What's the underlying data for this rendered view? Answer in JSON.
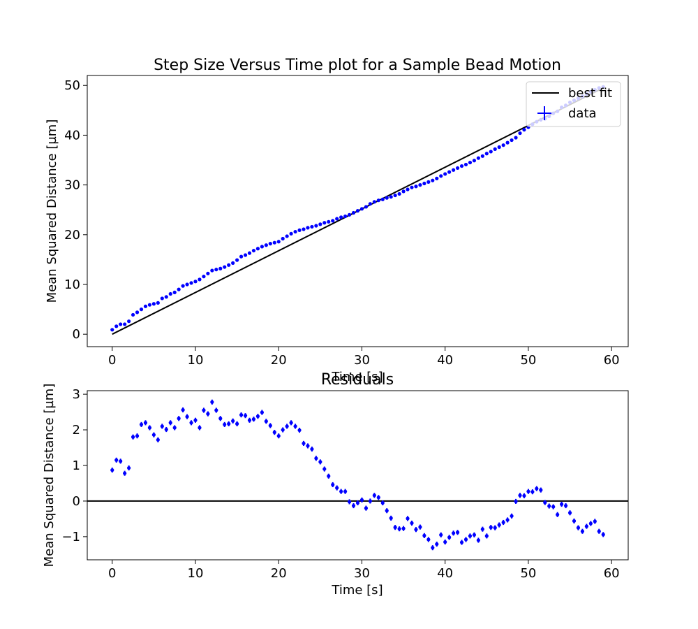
{
  "chart_data": [
    {
      "type": "scatter",
      "title": "Step Size Versus Time plot for a Sample Bead Motion",
      "xlabel": "Time [s]",
      "ylabel": "Mean Squared Distance [µm]",
      "xlim": [
        -3,
        62
      ],
      "ylim": [
        -2.5,
        52
      ],
      "xticks": [
        0,
        10,
        20,
        30,
        40,
        50,
        60
      ],
      "yticks": [
        0,
        10,
        20,
        30,
        40,
        50
      ],
      "grid": false,
      "legend_position": "top-right",
      "legend": [
        {
          "label": "best fit",
          "kind": "line",
          "color": "#000000"
        },
        {
          "label": "data",
          "kind": "errorbar-point",
          "color": "#0000ff"
        }
      ],
      "fit_line": {
        "x": [
          0,
          59
        ],
        "y": [
          0,
          49.5
        ],
        "color": "#000000"
      },
      "series": [
        {
          "color": "#0000ff",
          "x": [
            0.0,
            0.5,
            1.0,
            1.5,
            2.0,
            2.5,
            3.0,
            3.5,
            4.0,
            4.5,
            5.0,
            5.5,
            6.0,
            6.5,
            7.0,
            7.5,
            8.0,
            8.5,
            9.0,
            9.5,
            10.0,
            10.5,
            11.0,
            11.5,
            12.0,
            12.5,
            13.0,
            13.5,
            14.0,
            14.5,
            15.0,
            15.5,
            16.0,
            16.5,
            17.0,
            17.5,
            18.0,
            18.5,
            19.0,
            19.5,
            20.0,
            20.5,
            21.0,
            21.5,
            22.0,
            22.5,
            23.0,
            23.5,
            24.0,
            24.5,
            25.0,
            25.5,
            26.0,
            26.5,
            27.0,
            27.5,
            28.0,
            28.5,
            29.0,
            29.5,
            30.0,
            30.5,
            31.0,
            31.5,
            32.0,
            32.5,
            33.0,
            33.5,
            34.0,
            34.5,
            35.0,
            35.5,
            36.0,
            36.5,
            37.0,
            37.5,
            38.0,
            38.5,
            39.0,
            39.5,
            40.0,
            40.5,
            41.0,
            41.5,
            42.0,
            42.5,
            43.0,
            43.5,
            44.0,
            44.5,
            45.0,
            45.5,
            46.0,
            46.5,
            47.0,
            47.5,
            48.0,
            48.5,
            49.0,
            49.5,
            50.0,
            50.5,
            51.0,
            51.5,
            52.0,
            52.5,
            53.0,
            53.5,
            54.0,
            54.5,
            55.0,
            55.5,
            56.0,
            56.5,
            57.0,
            57.5,
            58.0,
            58.5,
            59.0
          ],
          "y": [
            0.9,
            1.6,
            2.0,
            2.0,
            2.6,
            3.9,
            4.4,
            5.0,
            5.6,
            5.9,
            6.1,
            6.3,
            7.2,
            7.5,
            8.1,
            8.4,
            9.0,
            9.7,
            10.0,
            10.3,
            10.6,
            11.0,
            11.6,
            12.2,
            12.8,
            13.0,
            13.2,
            13.5,
            13.9,
            14.3,
            14.9,
            15.6,
            15.9,
            16.3,
            16.8,
            17.2,
            17.6,
            17.9,
            18.2,
            18.4,
            18.6,
            19.2,
            19.7,
            20.2,
            20.6,
            20.9,
            21.1,
            21.4,
            21.6,
            21.8,
            22.1,
            22.4,
            22.6,
            22.8,
            23.2,
            23.5,
            23.7,
            24.0,
            24.4,
            24.8,
            25.2,
            25.6,
            26.2,
            26.6,
            26.9,
            27.1,
            27.4,
            27.6,
            27.9,
            28.2,
            28.7,
            29.1,
            29.5,
            29.7,
            30.0,
            30.3,
            30.6,
            30.9,
            31.3,
            31.8,
            32.2,
            32.6,
            33.0,
            33.4,
            33.8,
            34.1,
            34.5,
            34.9,
            35.4,
            35.8,
            36.3,
            36.7,
            37.2,
            37.6,
            38.0,
            38.5,
            39.0,
            39.5,
            40.4,
            41.1,
            41.6,
            42.2,
            42.7,
            43.1,
            43.3,
            43.8,
            44.4,
            44.8,
            45.6,
            46.0,
            46.6,
            47.0,
            47.4,
            47.8,
            48.3,
            48.7,
            49.1,
            49.5,
            49.7
          ]
        }
      ]
    },
    {
      "type": "scatter",
      "title": "Residuals",
      "xlabel": "Time [s]",
      "ylabel": "Mean Squared Distance [µm]",
      "xlim": [
        -3,
        62
      ],
      "ylim": [
        -1.65,
        3.1
      ],
      "xticks": [
        0,
        10,
        20,
        30,
        40,
        50,
        60
      ],
      "yticks": [
        -1,
        0,
        1,
        2,
        3
      ],
      "grid": false,
      "zero_line": {
        "y": 0,
        "color": "#000000"
      },
      "series": [
        {
          "color": "#0000ff",
          "error": 0.07,
          "x": [
            0.0,
            0.5,
            1.0,
            1.5,
            2.0,
            2.5,
            3.0,
            3.5,
            4.0,
            4.5,
            5.0,
            5.5,
            6.0,
            6.5,
            7.0,
            7.5,
            8.0,
            8.5,
            9.0,
            9.5,
            10.0,
            10.5,
            11.0,
            11.5,
            12.0,
            12.5,
            13.0,
            13.5,
            14.0,
            14.5,
            15.0,
            15.5,
            16.0,
            16.5,
            17.0,
            17.5,
            18.0,
            18.5,
            19.0,
            19.5,
            20.0,
            20.5,
            21.0,
            21.5,
            22.0,
            22.5,
            23.0,
            23.5,
            24.0,
            24.5,
            25.0,
            25.5,
            26.0,
            26.5,
            27.0,
            27.5,
            28.0,
            28.5,
            29.0,
            29.5,
            30.0,
            30.5,
            31.0,
            31.5,
            32.0,
            32.5,
            33.0,
            33.5,
            34.0,
            34.5,
            35.0,
            35.5,
            36.0,
            36.5,
            37.0,
            37.5,
            38.0,
            38.5,
            39.0,
            39.5,
            40.0,
            40.5,
            41.0,
            41.5,
            42.0,
            42.5,
            43.0,
            43.5,
            44.0,
            44.5,
            45.0,
            45.5,
            46.0,
            46.5,
            47.0,
            47.5,
            48.0,
            48.5,
            49.0,
            49.5,
            50.0,
            50.5,
            51.0,
            51.5,
            52.0,
            52.5,
            53.0,
            53.5,
            54.0,
            54.5,
            55.0,
            55.5,
            56.0,
            56.5,
            57.0,
            57.5,
            58.0,
            58.5,
            59.0
          ],
          "y": [
            0.87,
            1.15,
            1.12,
            0.78,
            0.93,
            1.8,
            1.83,
            2.15,
            2.2,
            2.06,
            1.86,
            1.72,
            2.1,
            2.01,
            2.2,
            2.06,
            2.32,
            2.56,
            2.37,
            2.2,
            2.27,
            2.06,
            2.55,
            2.45,
            2.78,
            2.55,
            2.32,
            2.15,
            2.17,
            2.25,
            2.17,
            2.42,
            2.4,
            2.27,
            2.3,
            2.38,
            2.49,
            2.24,
            2.12,
            1.93,
            1.83,
            2.0,
            2.1,
            2.2,
            2.1,
            1.99,
            1.62,
            1.55,
            1.46,
            1.2,
            1.1,
            0.9,
            0.7,
            0.46,
            0.37,
            0.27,
            0.27,
            -0.02,
            -0.13,
            -0.05,
            0.03,
            -0.2,
            0.0,
            0.16,
            0.1,
            -0.05,
            -0.27,
            -0.48,
            -0.74,
            -0.78,
            -0.77,
            -0.49,
            -0.62,
            -0.8,
            -0.73,
            -0.97,
            -1.08,
            -1.31,
            -1.21,
            -0.95,
            -1.15,
            -1.02,
            -0.9,
            -0.88,
            -1.16,
            -1.08,
            -0.98,
            -0.95,
            -1.1,
            -0.79,
            -0.98,
            -0.74,
            -0.75,
            -0.67,
            -0.6,
            -0.53,
            -0.42,
            -0.01,
            0.16,
            0.15,
            0.27,
            0.26,
            0.35,
            0.31,
            -0.04,
            -0.14,
            -0.16,
            -0.38,
            -0.09,
            -0.13,
            -0.33,
            -0.56,
            -0.75,
            -0.85,
            -0.71,
            -0.63,
            -0.57,
            -0.85,
            -0.94
          ]
        }
      ]
    }
  ]
}
